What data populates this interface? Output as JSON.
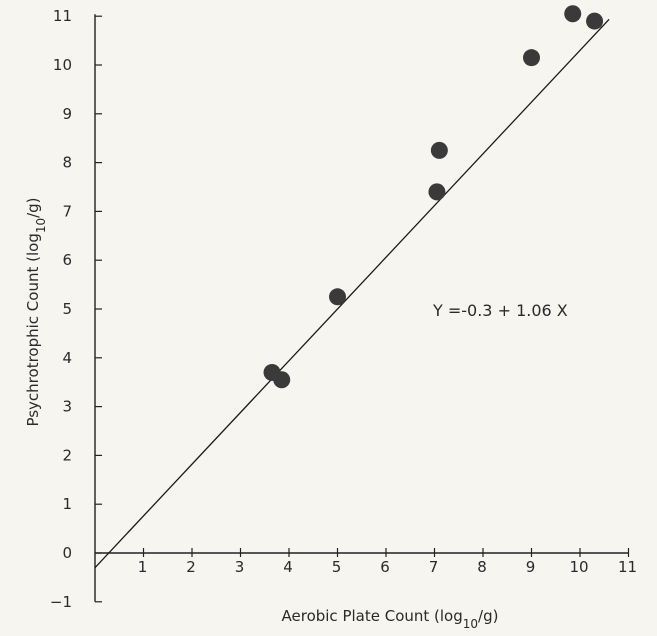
{
  "chart_data": {
    "type": "scatter",
    "title": "",
    "xlabel": "Aerobic Plate Count (log10/g)",
    "ylabel": "Psychrotrophic Count (log10/g)",
    "xlim": [
      0,
      11
    ],
    "ylim": [
      -1,
      11
    ],
    "x_ticks": [
      {
        "value": 1,
        "label": "1"
      },
      {
        "value": 2,
        "label": "2"
      },
      {
        "value": 3,
        "label": "3"
      },
      {
        "value": 4,
        "label": "4"
      },
      {
        "value": 5,
        "label": "5"
      },
      {
        "value": 6,
        "label": "6"
      },
      {
        "value": 7,
        "label": "7"
      },
      {
        "value": 8,
        "label": "8"
      },
      {
        "value": 9,
        "label": "9"
      },
      {
        "value": 10,
        "label": "10"
      },
      {
        "value": 11,
        "label": "11"
      }
    ],
    "y_ticks": [
      {
        "value": -1,
        "label": "−1"
      },
      {
        "value": 0,
        "label": "0"
      },
      {
        "value": 1,
        "label": "1"
      },
      {
        "value": 2,
        "label": "2"
      },
      {
        "value": 3,
        "label": "3"
      },
      {
        "value": 4,
        "label": "4"
      },
      {
        "value": 5,
        "label": "5"
      },
      {
        "value": 6,
        "label": "6"
      },
      {
        "value": 7,
        "label": "7"
      },
      {
        "value": 8,
        "label": "8"
      },
      {
        "value": 9,
        "label": "9"
      },
      {
        "value": 10,
        "label": "10"
      },
      {
        "value": 11,
        "label": "11"
      }
    ],
    "points": [
      {
        "x": 3.65,
        "y": 3.7
      },
      {
        "x": 3.85,
        "y": 3.55
      },
      {
        "x": 5.0,
        "y": 5.25
      },
      {
        "x": 7.05,
        "y": 7.4
      },
      {
        "x": 7.1,
        "y": 8.25
      },
      {
        "x": 9.0,
        "y": 10.15
      },
      {
        "x": 9.85,
        "y": 11.05
      },
      {
        "x": 10.3,
        "y": 10.9
      }
    ],
    "fit_line": {
      "intercept": -0.3,
      "slope": 1.06,
      "x_range": [
        0,
        10.6
      ]
    },
    "annotation": "Y =-0.3 + 1.06 X",
    "colors": {
      "points": "#3a3a3a",
      "line": "#1a1a1a",
      "axes": "#222222"
    }
  }
}
